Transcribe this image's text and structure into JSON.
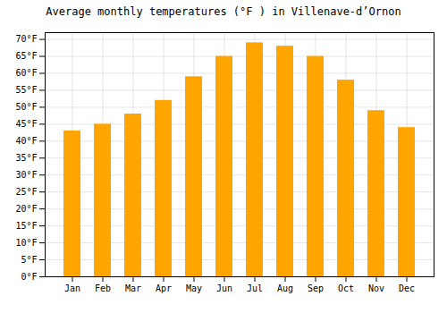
{
  "chart_data": {
    "type": "bar",
    "title": "Average monthly temperatures (°F ) in Villenave-d’Ornon",
    "categories": [
      "Jan",
      "Feb",
      "Mar",
      "Apr",
      "May",
      "Jun",
      "Jul",
      "Aug",
      "Sep",
      "Oct",
      "Nov",
      "Dec"
    ],
    "values": [
      43,
      45,
      48,
      52,
      59,
      65,
      69,
      68,
      65,
      58,
      49,
      44
    ],
    "color": "#FFA500",
    "ylim": [
      0,
      72
    ],
    "yticks": [
      {
        "value": 0,
        "label": "0°F"
      },
      {
        "value": 5,
        "label": "5°F"
      },
      {
        "value": 10,
        "label": "10°F"
      },
      {
        "value": 15,
        "label": "15°F"
      },
      {
        "value": 20,
        "label": "20°F"
      },
      {
        "value": 25,
        "label": "25°F"
      },
      {
        "value": 30,
        "label": "30°F"
      },
      {
        "value": 35,
        "label": "35°F"
      },
      {
        "value": 40,
        "label": "40°F"
      },
      {
        "value": 45,
        "label": "45°F"
      },
      {
        "value": 50,
        "label": "50°F"
      },
      {
        "value": 55,
        "label": "55°F"
      },
      {
        "value": 60,
        "label": "60°F"
      },
      {
        "value": 65,
        "label": "65°F"
      },
      {
        "value": 70,
        "label": "70°F"
      }
    ],
    "grid": true
  }
}
